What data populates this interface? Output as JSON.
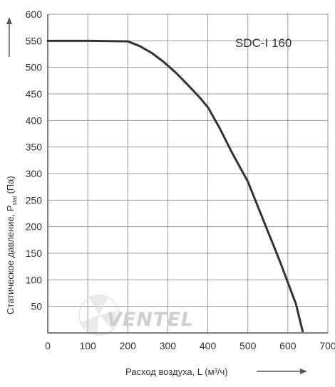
{
  "chart_data": {
    "type": "line",
    "title": "",
    "xlabel": "Расход воздуха, L (м³/ч)",
    "ylabel": "Статическое давление, P",
    "ylabel_subscript": "stat",
    "ylabel_unit": "(Па)",
    "xlim": [
      0,
      700
    ],
    "ylim": [
      0,
      600
    ],
    "x_ticks": [
      "0",
      "100",
      "200",
      "300",
      "400",
      "500",
      "600",
      "700"
    ],
    "y_ticks": [
      "50",
      "100",
      "150",
      "200",
      "250",
      "300",
      "350",
      "400",
      "450",
      "500",
      "550",
      "600"
    ],
    "grid": true,
    "series": [
      {
        "name": "SDC-I 160",
        "color": "#333333",
        "x": [
          0,
          100,
          200,
          230,
          260,
          290,
          320,
          350,
          380,
          400,
          430,
          460,
          500,
          540,
          580,
          620,
          637
        ],
        "y": [
          550,
          550,
          549,
          540,
          527,
          510,
          490,
          467,
          443,
          425,
          385,
          340,
          285,
          210,
          135,
          55,
          3
        ]
      }
    ]
  },
  "logo": {
    "text": "VENTEL",
    "color": "#cfcfcf"
  }
}
